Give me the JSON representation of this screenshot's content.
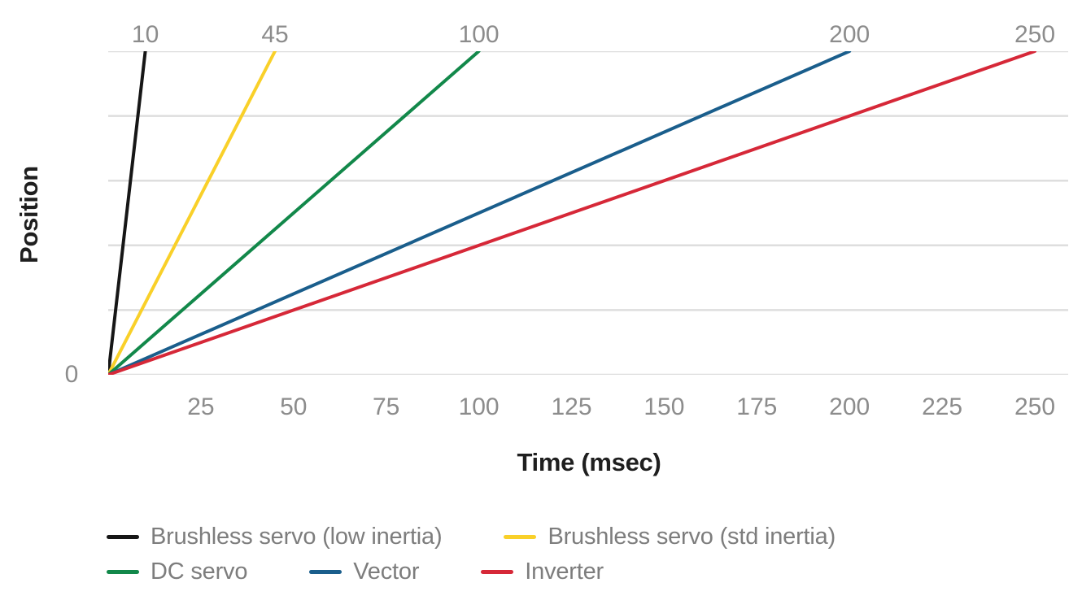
{
  "chart_data": {
    "type": "line",
    "title": "",
    "xlabel": "Time (msec)",
    "ylabel": "Position",
    "x_axis": {
      "min": 0,
      "max_data": 250,
      "max_extent": 259,
      "bottom_ticks": [
        25,
        50,
        75,
        100,
        125,
        150,
        175,
        200,
        225,
        250
      ],
      "top_ticks": [
        10,
        45,
        100,
        200,
        250
      ],
      "origin_label": "0"
    },
    "y_axis": {
      "min": 0,
      "max": 1,
      "tick_labels_shown": false,
      "gridlines": 6
    },
    "grid": "horizontal",
    "series": [
      {
        "name": "Brushless servo (low inertia)",
        "color": "#161616",
        "reach_time_msec": 10,
        "points": [
          [
            0,
            0
          ],
          [
            10,
            1
          ]
        ]
      },
      {
        "name": "Brushless servo (std inertia)",
        "color": "#f9d029",
        "reach_time_msec": 45,
        "points": [
          [
            0,
            0
          ],
          [
            45,
            1
          ]
        ]
      },
      {
        "name": "DC servo",
        "color": "#12884a",
        "reach_time_msec": 100,
        "points": [
          [
            0,
            0
          ],
          [
            100,
            1
          ]
        ]
      },
      {
        "name": "Vector",
        "color": "#1a5e8c",
        "reach_time_msec": 200,
        "points": [
          [
            0,
            0
          ],
          [
            200,
            1
          ]
        ]
      },
      {
        "name": "Inverter",
        "color": "#d62838",
        "reach_time_msec": 250,
        "points": [
          [
            0,
            0
          ],
          [
            250,
            1
          ]
        ]
      }
    ],
    "legend": {
      "position": "bottom-left",
      "rows": [
        [
          0,
          1
        ],
        [
          2,
          3,
          4
        ]
      ]
    },
    "colors": {
      "background": "#ffffff",
      "gridline": "#dedede",
      "tick_text": "#8c8c8c",
      "axis_title_text": "#1f1f1f",
      "legend_text": "#7d7d7d"
    }
  }
}
